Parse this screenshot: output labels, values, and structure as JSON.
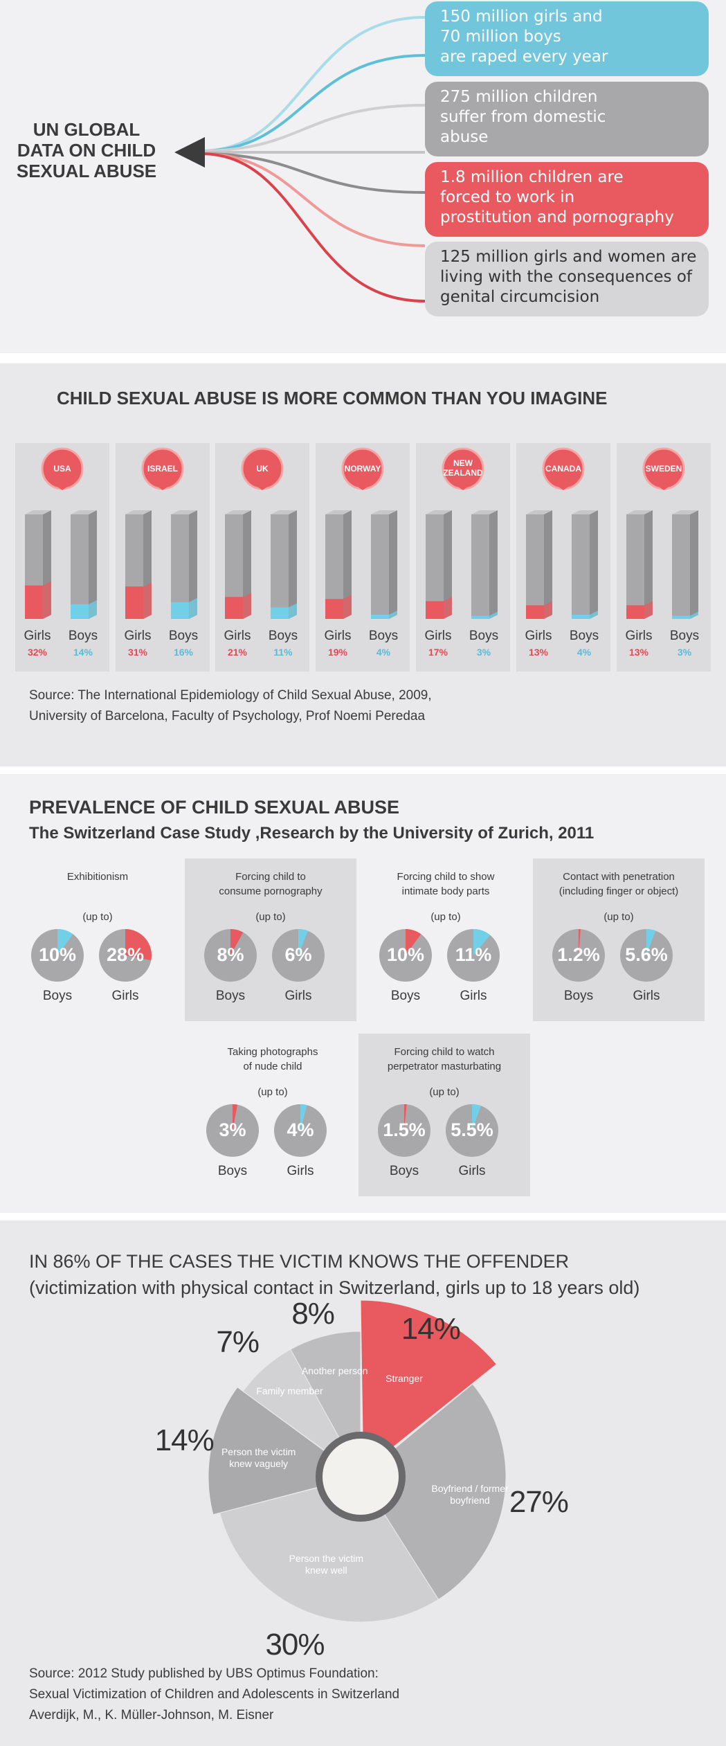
{
  "un": {
    "title_lines": [
      "UN GLOBAL",
      "DATA ON CHILD",
      "SEXUAL ABUSE"
    ],
    "items": [
      {
        "lines": [
          "150 million girls and",
          "70 million boys",
          "are raped every year"
        ],
        "color": "#72c6dc"
      },
      {
        "lines": [
          "275 million children",
          "suffer from domestic",
          "abuse"
        ],
        "color": "#a8a8aa"
      },
      {
        "lines": [
          "1.8 million children are",
          "forced to work in",
          "prostitution and pornography"
        ],
        "color": "#e85a60"
      },
      {
        "lines": [
          "125 million girls and women are",
          "living with the consequences of",
          "genital circumcision"
        ],
        "color": "#d6d6d8"
      }
    ]
  },
  "countries": {
    "title": "CHILD SEXUAL ABUSE IS MORE COMMON THAN YOU IMAGINE",
    "girls_label": "Girls",
    "boys_label": "Boys",
    "list": [
      {
        "name": "USA",
        "girls": "32%",
        "boys": "14%"
      },
      {
        "name": "ISRAEL",
        "girls": "31%",
        "boys": "16%"
      },
      {
        "name": "UK",
        "girls": "21%",
        "boys": "11%"
      },
      {
        "name": "NORWAY",
        "girls": "19%",
        "boys": "4%"
      },
      {
        "name": "NEW ZEALAND",
        "girls": "17%",
        "boys": "3%"
      },
      {
        "name": "CANADA",
        "girls": "13%",
        "boys": "4%"
      },
      {
        "name": "SWEDEN",
        "girls": "13%",
        "boys": "3%"
      }
    ],
    "source": [
      "Source: The International Epidemiology of Child Sexual Abuse, 2009,",
      "University of Barcelona, Faculty of Psychology, Prof Noemi Peredaa"
    ]
  },
  "swiss": {
    "title": "PREVALENCE OF CHILD SEXUAL ABUSE",
    "subtitle": "The Switzerland Case Study ,Research by the University of Zurich, 2011",
    "upto": "(up to)",
    "panels": [
      {
        "title": [
          "Exhibitionism"
        ],
        "a": {
          "label": "Boys",
          "text": "10%",
          "value": 10,
          "color": "#72cfe8"
        },
        "b": {
          "label": "Girls",
          "text": "28%",
          "value": 28,
          "color": "#e85a60"
        }
      },
      {
        "title": [
          "Forcing child to",
          "consume pornography"
        ],
        "a": {
          "label": "Boys",
          "text": "8%",
          "value": 8,
          "color": "#e85a60"
        },
        "b": {
          "label": "Girls",
          "text": "6%",
          "value": 6,
          "color": "#72cfe8"
        }
      },
      {
        "title": [
          "Forcing child to show",
          "intimate body parts"
        ],
        "a": {
          "label": "Boys",
          "text": "10%",
          "value": 10,
          "color": "#e85a60"
        },
        "b": {
          "label": "Girls",
          "text": "11%",
          "value": 11,
          "color": "#72cfe8"
        }
      },
      {
        "title": [
          "Contact with penetration",
          "(including finger or object)"
        ],
        "a": {
          "label": "Boys",
          "text": "1.2%",
          "value": 1.2,
          "color": "#e85a60"
        },
        "b": {
          "label": "Girls",
          "text": "5.6%",
          "value": 5.6,
          "color": "#72cfe8"
        }
      },
      {
        "title": [
          "Taking photographs",
          "of nude child"
        ],
        "a": {
          "label": "Boys",
          "text": "3%",
          "value": 3,
          "color": "#e85a60"
        },
        "b": {
          "label": "Girls",
          "text": "4%",
          "value": 4,
          "color": "#72cfe8"
        }
      },
      {
        "title": [
          "Forcing child to watch",
          "perpetrator masturbating"
        ],
        "a": {
          "label": "Boys",
          "text": "1.5%",
          "value": 1.5,
          "color": "#e85a60"
        },
        "b": {
          "label": "Girls",
          "text": "5.5%",
          "value": 5.5,
          "color": "#72cfe8"
        }
      }
    ]
  },
  "offender": {
    "title": "IN 86% OF THE CASES THE VICTIM KNOWS THE OFFENDER",
    "subtitle": "(victimization with physical contact in Switzerland, girls up to 18 years old)",
    "source": [
      "Source: 2012 Study published by UBS Optimus Foundation:",
      "Sexual Victimization of Children and Adolescents in Switzerland",
      "Averdijk, M., K. Müller-Johnson, M. Eisner"
    ]
  },
  "chart_data": [
    {
      "type": "bar",
      "title": "CHILD SEXUAL ABUSE IS MORE COMMON THAN YOU IMAGINE",
      "categories": [
        "USA",
        "ISRAEL",
        "UK",
        "NORWAY",
        "NEW ZEALAND",
        "CANADA",
        "SWEDEN"
      ],
      "series": [
        {
          "name": "Girls",
          "values": [
            32,
            31,
            21,
            19,
            17,
            13,
            13
          ],
          "color": "#e85a60"
        },
        {
          "name": "Boys",
          "values": [
            14,
            16,
            11,
            4,
            3,
            4,
            3
          ],
          "color": "#72cfe8"
        }
      ],
      "ylim": [
        0,
        100
      ]
    },
    {
      "type": "pie",
      "title": "IN 86% OF THE CASES THE VICTIM KNOWS THE OFFENDER",
      "slices": [
        {
          "label": "Stranger",
          "value": 14,
          "text": "14%",
          "color": "#e85a60"
        },
        {
          "label": "Boyfriend / former boyfriend",
          "value": 27,
          "text": "27%",
          "color": "#b2b2b4"
        },
        {
          "label": "Person the victim knew well",
          "value": 30,
          "text": "30%",
          "color": "#cfcfd1"
        },
        {
          "label": "Person the victim knew vaguely",
          "value": 14,
          "text": "14%",
          "color": "#aaaaac"
        },
        {
          "label": "Family member",
          "value": 7,
          "text": "7%",
          "color": "#d2d2d4"
        },
        {
          "label": "Another person",
          "value": 8,
          "text": "8%",
          "color": "#bdbdbf"
        }
      ]
    }
  ]
}
